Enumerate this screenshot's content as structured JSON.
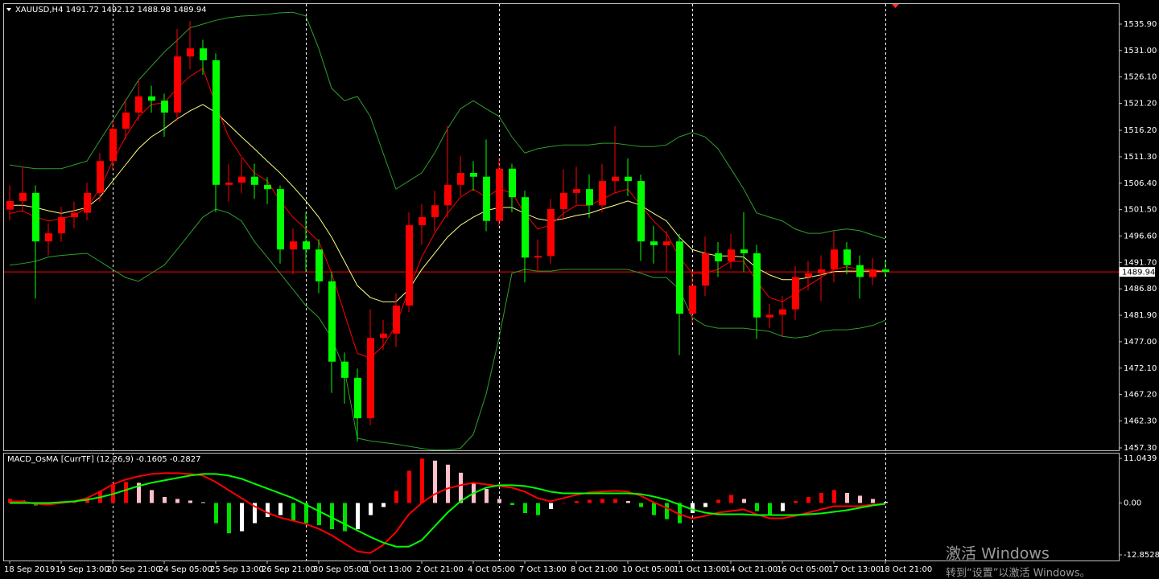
{
  "chart_data": [
    {
      "type": "candlestick",
      "title": "XAUUSD,H4  1491.72 1492.12 1488.98 1489.94",
      "categories": [
        "18 Sep 2019",
        null,
        null,
        null,
        "19 Sep 13:00",
        null,
        null,
        null,
        "20 Sep 21:00",
        null,
        null,
        null,
        "24 Sep 05:00",
        null,
        null,
        null,
        "25 Sep 13:00",
        null,
        null,
        null,
        "26 Sep 21:00",
        null,
        null,
        null,
        "30 Sep 05:00",
        null,
        null,
        null,
        "1 Oct 13:00",
        null,
        null,
        null,
        "2 Oct 21:00",
        null,
        null,
        null,
        "4 Oct 05:00",
        null,
        null,
        null,
        "7 Oct 13:00",
        null,
        null,
        null,
        "8 Oct 21:00",
        null,
        null,
        null,
        "10 Oct 05:00",
        null,
        null,
        null,
        "11 Oct 13:00",
        null,
        null,
        null,
        "14 Oct 21:00",
        null,
        null,
        null,
        "16 Oct 05:00",
        null,
        null,
        null,
        "17 Oct 13:00",
        null,
        null,
        null,
        "18 Oct 21:00"
      ],
      "open": [
        1501.5,
        1503.1,
        1504.6,
        1495.6,
        1497.1,
        1500.1,
        1500.9,
        1504.6,
        1510.5,
        1516.5,
        1519.5,
        1522.5,
        1521.7,
        1519.5,
        1529.9,
        1531.4,
        1529.2,
        1506.1,
        1506.5,
        1507.6,
        1506.1,
        1505.3,
        1494.1,
        1495.6,
        1494.1,
        1488.2,
        1473.3,
        1470.3,
        1462.8,
        1477.7,
        1478.5,
        1483.7,
        1498.6,
        1500.1,
        1502.3,
        1506.1,
        1508.3,
        1507.6,
        1499.4,
        1509.1,
        1503.8,
        1492.6,
        1492.9,
        1501.6,
        1504.6,
        1505.3,
        1502.3,
        1506.8,
        1507.6,
        1506.8,
        1495.6,
        1494.9,
        1495.6,
        1482.2,
        1487.4,
        1493.4,
        1491.9,
        1494.1,
        1493.4,
        1481.5,
        1482.0,
        1483.0,
        1489.0,
        1489.7,
        1490.4,
        1494.1,
        1491.2,
        1489.0,
        1490.4
      ],
      "high": [
        1506.0,
        1509.5,
        1506.0,
        1499.0,
        1502.0,
        1503.0,
        1506.5,
        1512.0,
        1518.0,
        1522.0,
        1525.5,
        1524.5,
        1523.0,
        1535.0,
        1536.5,
        1533.0,
        1530.5,
        1510.0,
        1511.0,
        1510.0,
        1507.5,
        1506.0,
        1498.0,
        1501.0,
        1496.0,
        1490.0,
        1475.0,
        1472.0,
        1483.0,
        1481.0,
        1486.0,
        1501.0,
        1502.5,
        1505.0,
        1517.0,
        1511.5,
        1510.5,
        1514.5,
        1511.0,
        1510.0,
        1505.0,
        1496.0,
        1503.5,
        1509.0,
        1509.5,
        1508.0,
        1510.0,
        1517.0,
        1511.0,
        1508.0,
        1498.5,
        1497.5,
        1497.0,
        1490.0,
        1496.5,
        1495.5,
        1497.0,
        1501.0,
        1495.0,
        1484.0,
        1485.5,
        1491.0,
        1492.0,
        1493.0,
        1497.5,
        1495.5,
        1493.0,
        1492.5,
        1492.12
      ],
      "low": [
        1499.5,
        1501.0,
        1485.0,
        1493.0,
        1495.5,
        1498.0,
        1499.5,
        1503.0,
        1509.0,
        1514.5,
        1518.0,
        1519.5,
        1515.0,
        1518.0,
        1527.5,
        1526.5,
        1501.0,
        1503.0,
        1504.5,
        1503.5,
        1502.5,
        1491.5,
        1489.5,
        1490.0,
        1486.0,
        1467.5,
        1465.5,
        1458.5,
        1461.5,
        1475.5,
        1476.0,
        1482.5,
        1495.0,
        1497.5,
        1500.0,
        1504.0,
        1505.0,
        1497.5,
        1498.5,
        1501.0,
        1488.0,
        1490.0,
        1491.5,
        1499.5,
        1502.5,
        1500.0,
        1501.0,
        1504.5,
        1504.0,
        1492.0,
        1491.5,
        1490.0,
        1474.5,
        1480.5,
        1485.5,
        1489.0,
        1490.5,
        1490.0,
        1477.5,
        1479.5,
        1478.0,
        1481.0,
        1486.5,
        1484.5,
        1488.0,
        1489.5,
        1485.0,
        1487.5,
        1488.98
      ],
      "close": [
        1503.1,
        1504.6,
        1495.6,
        1497.1,
        1500.1,
        1500.9,
        1504.6,
        1510.5,
        1516.5,
        1519.5,
        1522.5,
        1521.7,
        1519.5,
        1529.9,
        1531.4,
        1529.2,
        1506.1,
        1506.5,
        1507.6,
        1506.1,
        1505.3,
        1494.1,
        1495.6,
        1494.1,
        1488.2,
        1473.3,
        1470.3,
        1462.8,
        1477.7,
        1478.5,
        1483.7,
        1498.6,
        1500.1,
        1502.3,
        1506.1,
        1508.3,
        1507.6,
        1499.4,
        1509.1,
        1503.8,
        1492.6,
        1492.9,
        1501.6,
        1504.6,
        1505.3,
        1502.3,
        1506.8,
        1507.6,
        1506.8,
        1495.6,
        1494.9,
        1495.6,
        1482.2,
        1487.4,
        1493.4,
        1491.9,
        1494.1,
        1493.4,
        1481.5,
        1482.0,
        1483.0,
        1489.0,
        1489.7,
        1490.4,
        1494.1,
        1491.2,
        1489.0,
        1490.4,
        1489.94
      ],
      "up_color": "#ff0000",
      "down_color": "#00ff00",
      "overlays": [
        {
          "color": "#2f9e2f",
          "values": [
            1509.8,
            1509.4,
            1509.1,
            1509.1,
            1509.1,
            1509.8,
            1510.5,
            1514.3,
            1518.0,
            1521.7,
            1525.5,
            1528.1,
            1530.7,
            1532.9,
            1535.2,
            1535.9,
            1536.6,
            1537.1,
            1537.4,
            1537.5,
            1537.7,
            1538.0,
            1538.1,
            1537.4,
            1531.4,
            1524.0,
            1521.7,
            1522.5,
            1518.8,
            1512.0,
            1505.3,
            1506.8,
            1508.3,
            1512.0,
            1516.5,
            1520.2,
            1521.7,
            1520.2,
            1518.8,
            1515.0,
            1512.0,
            1512.8,
            1513.2,
            1513.5,
            1513.5,
            1513.5,
            1513.8,
            1513.8,
            1513.5,
            1513.2,
            1513.2,
            1513.5,
            1515.0,
            1515.8,
            1515.0,
            1512.8,
            1509.1,
            1505.3,
            1500.9,
            1500.1,
            1499.4,
            1497.9,
            1497.1,
            1497.1,
            1497.6,
            1497.9,
            1497.6,
            1496.8,
            1496.1
          ]
        },
        {
          "color": "#2f9e2f",
          "values": [
            1491.2,
            1491.5,
            1491.9,
            1492.7,
            1493.0,
            1493.2,
            1493.4,
            1491.9,
            1490.4,
            1488.9,
            1488.2,
            1489.7,
            1491.2,
            1494.1,
            1497.1,
            1500.1,
            1501.6,
            1500.9,
            1499.4,
            1495.6,
            1492.7,
            1489.7,
            1486.7,
            1483.7,
            1481.5,
            1477.7,
            1471.8,
            1459.1,
            1458.6,
            1458.3,
            1458.0,
            1457.6,
            1457.2,
            1456.9,
            1456.9,
            1457.2,
            1459.8,
            1467.3,
            1477.7,
            1489.7,
            1490.4,
            1490.1,
            1490.1,
            1490.4,
            1490.4,
            1490.4,
            1490.4,
            1490.4,
            1490.4,
            1489.7,
            1488.9,
            1488.9,
            1486.7,
            1481.5,
            1480.0,
            1479.5,
            1479.5,
            1479.5,
            1479.2,
            1478.9,
            1478.0,
            1477.7,
            1478.0,
            1478.9,
            1479.2,
            1479.2,
            1479.5,
            1480.0,
            1481.0
          ]
        },
        {
          "color": "#ffff80",
          "values": [
            1502.3,
            1502.3,
            1501.9,
            1501.3,
            1500.8,
            1501.3,
            1501.9,
            1503.8,
            1506.8,
            1509.8,
            1512.8,
            1515.0,
            1516.5,
            1518.3,
            1519.8,
            1521.0,
            1519.5,
            1517.3,
            1515.0,
            1512.8,
            1510.5,
            1508.3,
            1505.8,
            1503.1,
            1500.1,
            1496.4,
            1491.9,
            1487.4,
            1485.2,
            1484.4,
            1484.4,
            1486.7,
            1490.4,
            1493.4,
            1496.4,
            1498.6,
            1500.1,
            1501.3,
            1501.9,
            1501.9,
            1500.8,
            1499.8,
            1499.4,
            1499.8,
            1500.4,
            1500.8,
            1501.6,
            1502.3,
            1503.1,
            1502.3,
            1500.8,
            1499.4,
            1496.4,
            1494.1,
            1493.4,
            1492.9,
            1492.9,
            1492.7,
            1490.7,
            1489.4,
            1488.5,
            1488.5,
            1488.9,
            1489.4,
            1490.0,
            1490.1,
            1490.1,
            1490.1,
            1490.1
          ]
        },
        {
          "color": "#ff0000",
          "values": [
            1500.8,
            1501.3,
            1500.1,
            1499.4,
            1499.8,
            1500.4,
            1501.9,
            1505.3,
            1510.5,
            1515.0,
            1518.7,
            1521.0,
            1521.3,
            1524.0,
            1526.2,
            1527.7,
            1521.0,
            1515.0,
            1511.3,
            1508.3,
            1506.8,
            1503.1,
            1500.1,
            1497.9,
            1495.6,
            1489.7,
            1482.2,
            1474.8,
            1474.0,
            1476.2,
            1480.0,
            1486.7,
            1492.7,
            1497.1,
            1500.8,
            1503.8,
            1505.3,
            1503.8,
            1505.3,
            1504.6,
            1500.8,
            1497.9,
            1498.6,
            1500.8,
            1502.3,
            1502.3,
            1503.4,
            1504.6,
            1505.3,
            1502.3,
            1499.4,
            1497.1,
            1492.7,
            1489.7,
            1489.7,
            1490.4,
            1491.9,
            1491.9,
            1488.2,
            1485.2,
            1484.4,
            1485.9,
            1487.4,
            1488.9,
            1490.4,
            1490.9,
            1490.4,
            1490.3,
            1490.1
          ]
        }
      ],
      "ylim": [
        1456.85,
        1539.63
      ],
      "yticks": [
        {
          "value": 1535.9,
          "label": "1535.90"
        },
        {
          "value": 1531.0,
          "label": "1531.00"
        },
        {
          "value": 1526.1,
          "label": "1526.10"
        },
        {
          "value": 1521.2,
          "label": "1521.20"
        },
        {
          "value": 1516.2,
          "label": "1516.20"
        },
        {
          "value": 1511.3,
          "label": "1511.30"
        },
        {
          "value": 1506.4,
          "label": "1506.40"
        },
        {
          "value": 1501.5,
          "label": "1501.50"
        },
        {
          "value": 1496.6,
          "label": "1496.60"
        },
        {
          "value": 1491.7,
          "label": "1491.70"
        },
        {
          "value": 1486.8,
          "label": "1486.80"
        },
        {
          "value": 1481.9,
          "label": "1481.90"
        },
        {
          "value": 1477.0,
          "label": "1477.00"
        },
        {
          "value": 1472.1,
          "label": "1472.10"
        },
        {
          "value": 1467.2,
          "label": "1467.20"
        },
        {
          "value": 1462.3,
          "label": "1462.30"
        },
        {
          "value": 1457.3,
          "label": "1457.30"
        }
      ],
      "last_price": 1489.94,
      "last_price_color": "#ff0000",
      "period_separators": [
        8,
        23,
        38,
        53,
        68
      ]
    },
    {
      "type": "macd",
      "title": "MACD_OsMA [CurrTF] (12,26,9) -0.1605 -0.2827",
      "values": [
        1.0,
        0.6,
        -0.6,
        -0.4,
        0.2,
        0.6,
        1.4,
        3.0,
        4.5,
        5.2,
        5.0,
        3.2,
        1.5,
        1.0,
        0.6,
        0.2,
        -5.0,
        -7.5,
        -7.0,
        -5.0,
        -3.5,
        -3.0,
        -4.5,
        -5.0,
        -5.5,
        -6.5,
        -7.0,
        -6.5,
        -3.0,
        -1.0,
        3.0,
        8.0,
        11.0,
        10.5,
        9.5,
        7.5,
        5.0,
        3.5,
        1.0,
        -0.5,
        -2.5,
        -3.0,
        -1.5,
        0.0,
        0.5,
        0.8,
        1.0,
        1.0,
        0.5,
        -1.0,
        -3.0,
        -4.0,
        -5.0,
        -2.5,
        -1.0,
        0.8,
        2.0,
        1.0,
        -2.0,
        -2.8,
        -2.0,
        0.5,
        1.5,
        2.5,
        3.2,
        2.5,
        1.8,
        1.0,
        0.3
      ],
      "colors": {
        "positive_rising": "#ff0000",
        "positive_falling": "#ffc0cb",
        "negative_falling": "#00e000",
        "negative_rising": "#ffffff"
      },
      "lines": [
        {
          "color": "#ff0000",
          "values": [
            0.4,
            0.4,
            -0.2,
            -0.4,
            0.0,
            0.4,
            1.2,
            2.8,
            4.6,
            5.8,
            6.6,
            7.2,
            7.4,
            7.4,
            7.2,
            6.8,
            5.2,
            3.2,
            1.2,
            -0.8,
            -2.4,
            -3.6,
            -4.4,
            -5.2,
            -6.4,
            -8.0,
            -10.0,
            -12.0,
            -12.4,
            -10.4,
            -7.2,
            -2.8,
            0.0,
            2.2,
            3.6,
            4.4,
            5.0,
            4.6,
            4.2,
            3.8,
            2.8,
            1.2,
            0.4,
            1.2,
            2.0,
            2.6,
            2.8,
            3.0,
            2.8,
            1.8,
            0.2,
            -1.2,
            -2.8,
            -3.8,
            -3.2,
            -2.4,
            -2.0,
            -1.6,
            -2.8,
            -3.8,
            -3.8,
            -3.2,
            -2.4,
            -1.6,
            -0.8,
            -0.8,
            -0.8,
            -0.4,
            -0.2
          ]
        },
        {
          "color": "#00ff00",
          "values": [
            0.0,
            0.0,
            0.0,
            0.0,
            0.2,
            0.4,
            0.8,
            1.4,
            2.2,
            3.2,
            4.2,
            5.0,
            5.6,
            6.2,
            6.8,
            7.2,
            7.2,
            6.8,
            6.0,
            4.8,
            3.6,
            2.4,
            1.2,
            -0.4,
            -2.0,
            -3.6,
            -5.2,
            -6.8,
            -8.4,
            -9.8,
            -10.8,
            -10.8,
            -9.2,
            -5.8,
            -2.4,
            0.4,
            2.4,
            3.8,
            4.4,
            4.4,
            4.2,
            3.6,
            2.8,
            2.4,
            2.4,
            2.4,
            2.4,
            2.4,
            2.4,
            2.2,
            1.6,
            0.8,
            -0.4,
            -1.6,
            -2.4,
            -2.8,
            -2.8,
            -2.8,
            -3.0,
            -3.0,
            -3.0,
            -3.0,
            -2.8,
            -2.6,
            -2.2,
            -1.8,
            -1.2,
            -0.6,
            -0.2
          ]
        }
      ],
      "ylim": [
        -14.25,
        12.45
      ],
      "yticks": [
        11.0439,
        {
          "value": 0,
          "label": "0.00"
        },
        -12.8528
      ]
    }
  ],
  "watermark": {
    "line1": "激活 Windows",
    "line2": "转到“设置”以激活 Windows。"
  }
}
